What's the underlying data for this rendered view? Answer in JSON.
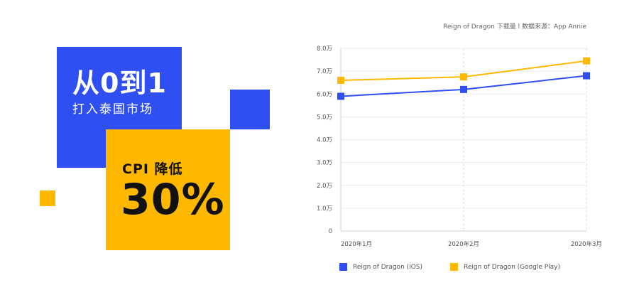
{
  "promo": {
    "headline": "从0到1",
    "subline": "打入泰国市场",
    "cpi_label": "CPI 降低",
    "cpi_value": "30%"
  },
  "chart_data": {
    "type": "line",
    "title": "Reign of Dragon 下载量 l 数据来源：App Annie",
    "categories": [
      "2020年1月",
      "2020年2月",
      "2020年3月"
    ],
    "series": [
      {
        "name": "Reign of Dragon (iOS)",
        "color": "#2f4ff3",
        "marker": "square",
        "values": [
          5.9,
          6.2,
          6.8
        ]
      },
      {
        "name": "Reign of Dragon (Google Play)",
        "color": "#ffb800",
        "marker": "square",
        "values": [
          6.6,
          6.75,
          7.45
        ]
      }
    ],
    "ylim": [
      0,
      8
    ],
    "yticks": [
      "0",
      "1.0万",
      "2.0万",
      "3.0万",
      "4.0万",
      "5.0万",
      "6.0万",
      "7.0万",
      "8.0万"
    ],
    "grid": true,
    "legend_position": "bottom"
  }
}
